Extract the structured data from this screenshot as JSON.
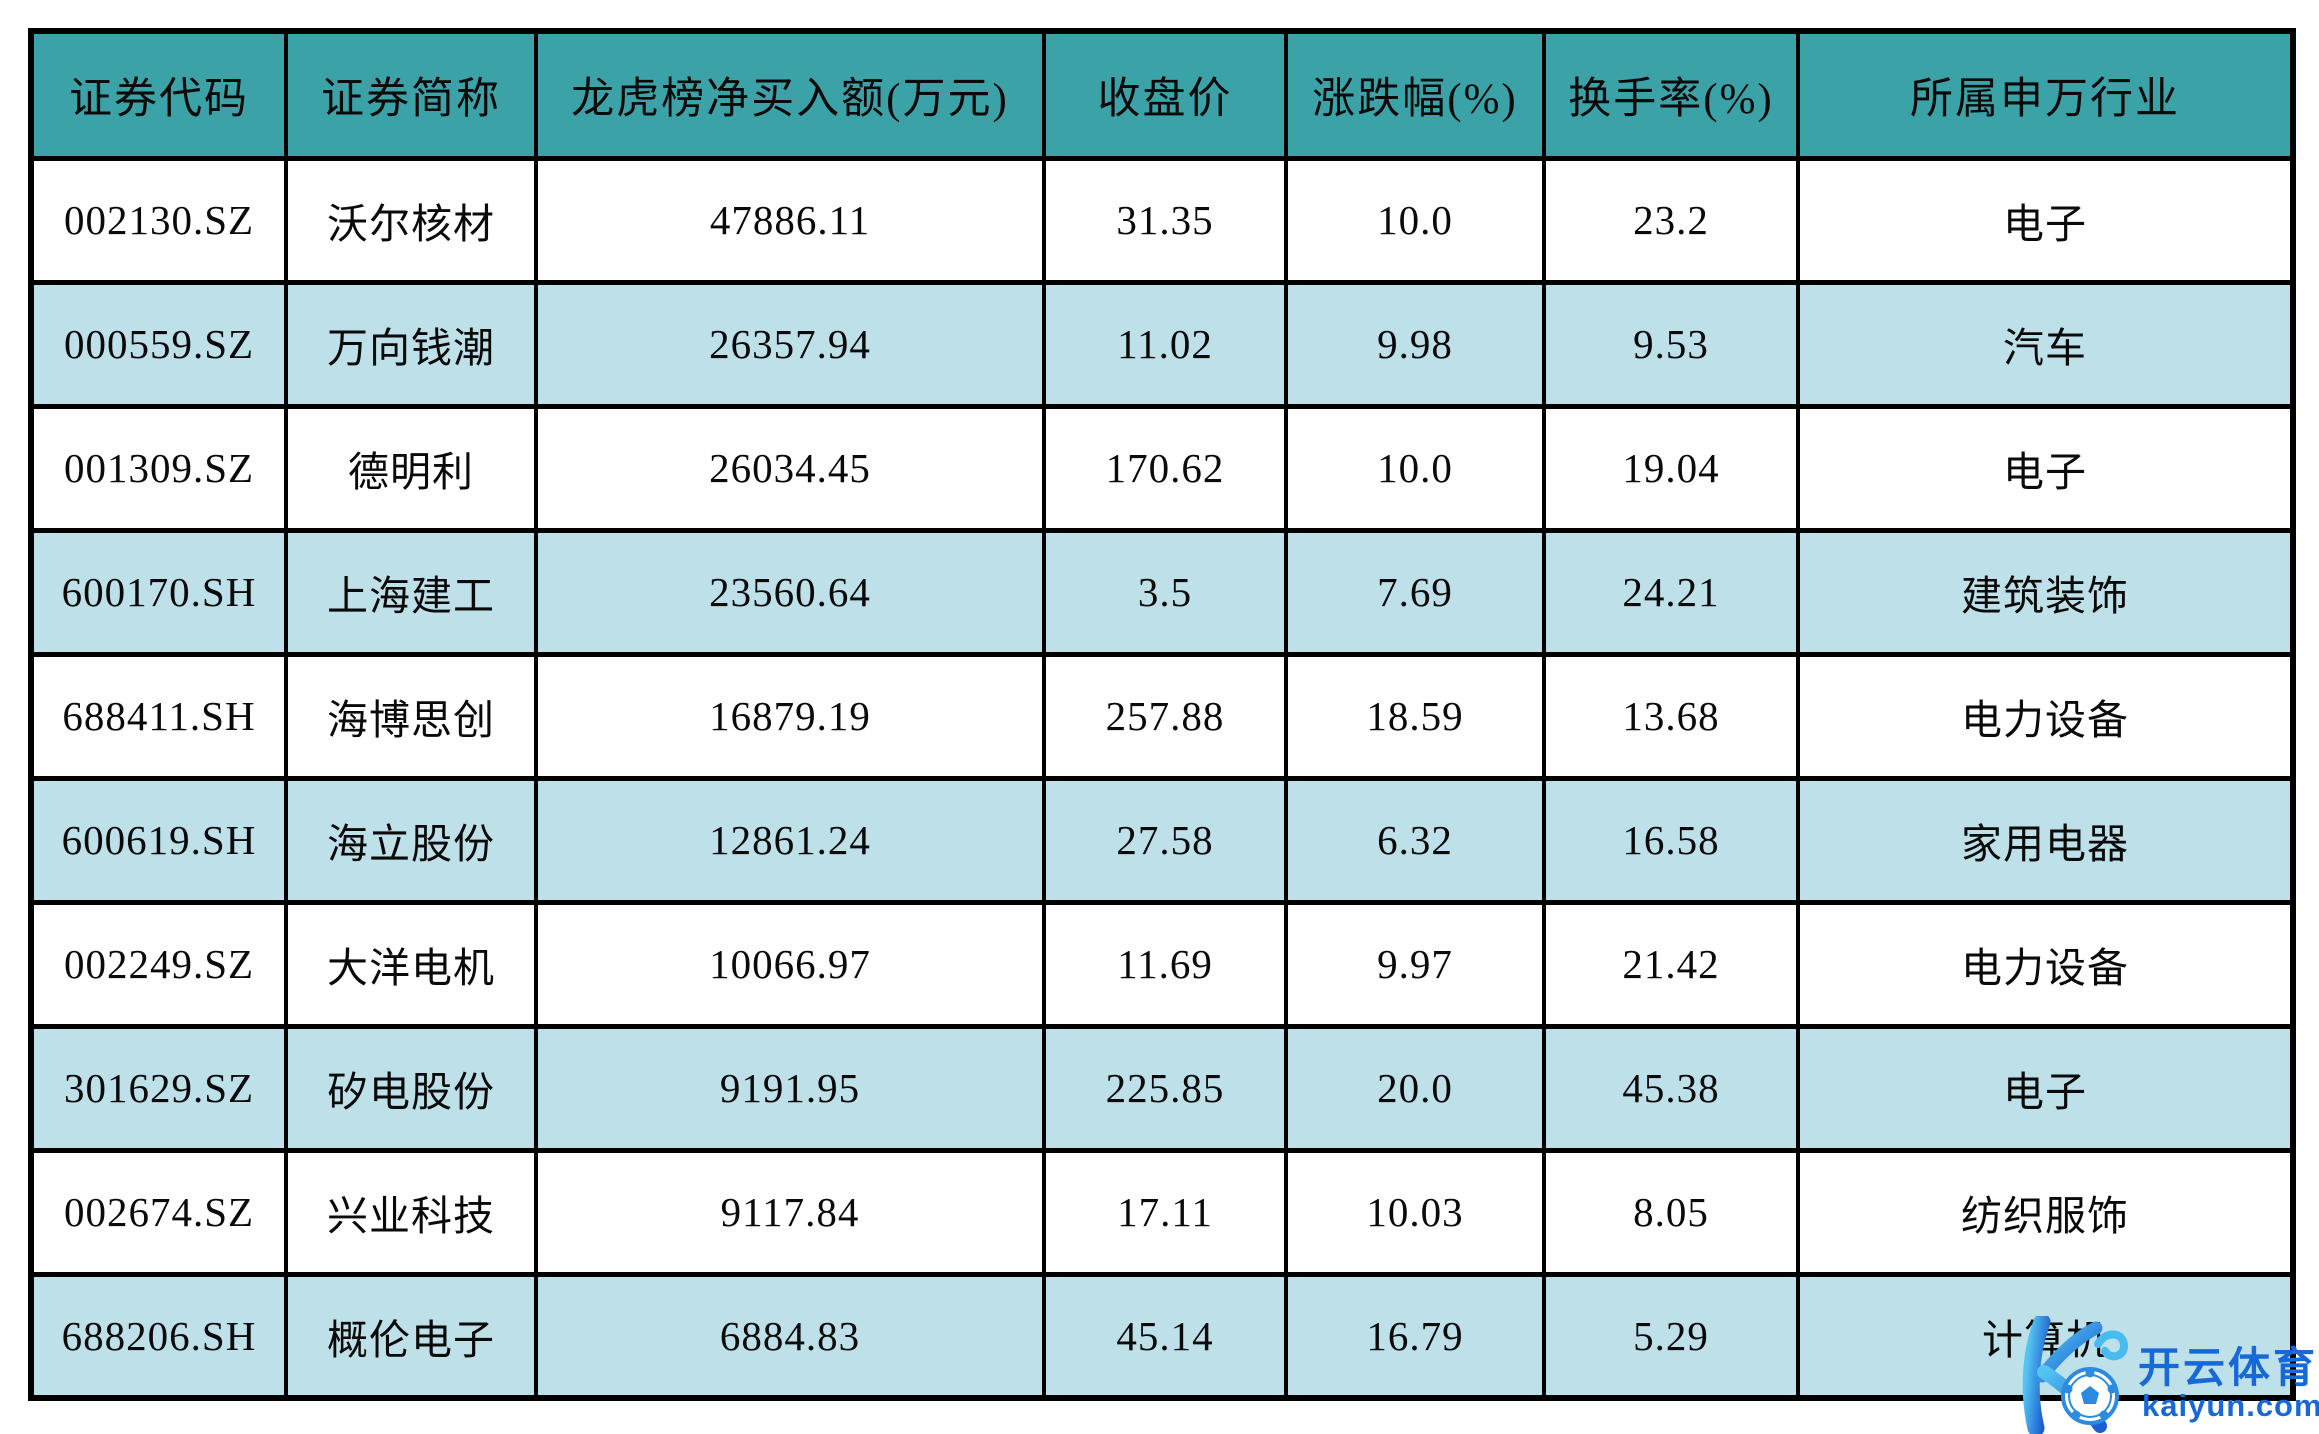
{
  "chart_data": {
    "type": "table",
    "title": "",
    "columns": [
      "证券代码",
      "证券简称",
      "龙虎榜净买入额(万元)",
      "收盘价",
      "涨跌幅(%)",
      "换手率(%)",
      "所属申万行业"
    ],
    "rows": [
      [
        "002130.SZ",
        "沃尔核材",
        "47886.11",
        "31.35",
        "10.0",
        "23.2",
        "电子"
      ],
      [
        "000559.SZ",
        "万向钱潮",
        "26357.94",
        "11.02",
        "9.98",
        "9.53",
        "汽车"
      ],
      [
        "001309.SZ",
        "德明利",
        "26034.45",
        "170.62",
        "10.0",
        "19.04",
        "电子"
      ],
      [
        "600170.SH",
        "上海建工",
        "23560.64",
        "3.5",
        "7.69",
        "24.21",
        "建筑装饰"
      ],
      [
        "688411.SH",
        "海博思创",
        "16879.19",
        "257.88",
        "18.59",
        "13.68",
        "电力设备"
      ],
      [
        "600619.SH",
        "海立股份",
        "12861.24",
        "27.58",
        "6.32",
        "16.58",
        "家用电器"
      ],
      [
        "002249.SZ",
        "大洋电机",
        "10066.97",
        "11.69",
        "9.97",
        "21.42",
        "电力设备"
      ],
      [
        "301629.SZ",
        "矽电股份",
        "9191.95",
        "225.85",
        "20.0",
        "45.38",
        "电子"
      ],
      [
        "002674.SZ",
        "兴业科技",
        "9117.84",
        "17.11",
        "10.03",
        "8.05",
        "纺织服饰"
      ],
      [
        "688206.SH",
        "概伦电子",
        "6884.83",
        "45.14",
        "16.79",
        "5.29",
        "计算机"
      ]
    ],
    "layout": {
      "header_bg": "#3BA2A8",
      "row_bg": "#FFFFFF",
      "row_alt_bg": "#BDE0E9",
      "border_color": "#000000",
      "alt_rows": "even rows (2,4,6,8,10) shaded"
    }
  },
  "watermark": {
    "brand": "开云体育",
    "domain": "kaiyun.com",
    "logo": "kaiyun-k-with-soccer-ball",
    "color": "#1669D6"
  }
}
